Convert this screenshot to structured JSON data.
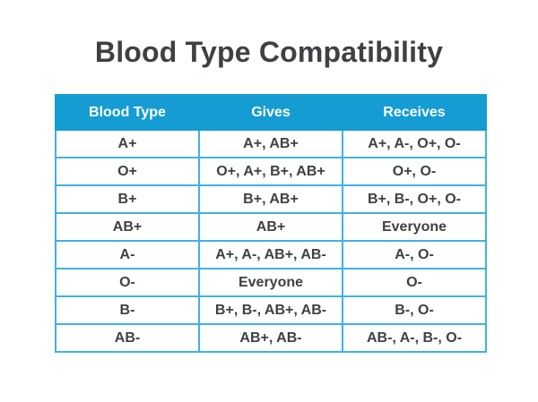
{
  "title": "Blood Type Compatibility",
  "colors": {
    "header_bg": "#149cd3",
    "table_border": "#3fb3e0",
    "header_text": "#ffffff",
    "body_text": "#3e4144",
    "page_bg": "#ffffff"
  },
  "table": {
    "columns": [
      "Blood Type",
      "Gives",
      "Receives"
    ],
    "rows": [
      [
        "A+",
        "A+, AB+",
        "A+, A-, O+, O-"
      ],
      [
        "O+",
        "O+, A+, B+, AB+",
        "O+, O-"
      ],
      [
        "B+",
        "B+, AB+",
        "B+, B-, O+, O-"
      ],
      [
        "AB+",
        "AB+",
        "Everyone"
      ],
      [
        "A-",
        "A+, A-, AB+, AB-",
        "A-, O-"
      ],
      [
        "O-",
        "Everyone",
        "O-"
      ],
      [
        "B-",
        "B+, B-, AB+, AB-",
        "B-, O-"
      ],
      [
        "AB-",
        "AB+, AB-",
        "AB-, A-, B-, O-"
      ]
    ]
  },
  "chart_data": {
    "type": "table",
    "title": "Blood Type Compatibility",
    "columns": [
      "Blood Type",
      "Gives",
      "Receives"
    ],
    "rows": [
      [
        "A+",
        "A+, AB+",
        "A+, A-, O+, O-"
      ],
      [
        "O+",
        "O+, A+, B+, AB+",
        "O+, O-"
      ],
      [
        "B+",
        "B+, AB+",
        "B+, B-, O+, O-"
      ],
      [
        "AB+",
        "AB+",
        "Everyone"
      ],
      [
        "A-",
        "A+, A-, AB+, AB-",
        "A-, O-"
      ],
      [
        "O-",
        "Everyone",
        "O-"
      ],
      [
        "B-",
        "B+, B-, AB+, AB-",
        "B-, O-"
      ],
      [
        "AB-",
        "AB+, AB-",
        "AB-, A-, B-, O-"
      ]
    ]
  }
}
